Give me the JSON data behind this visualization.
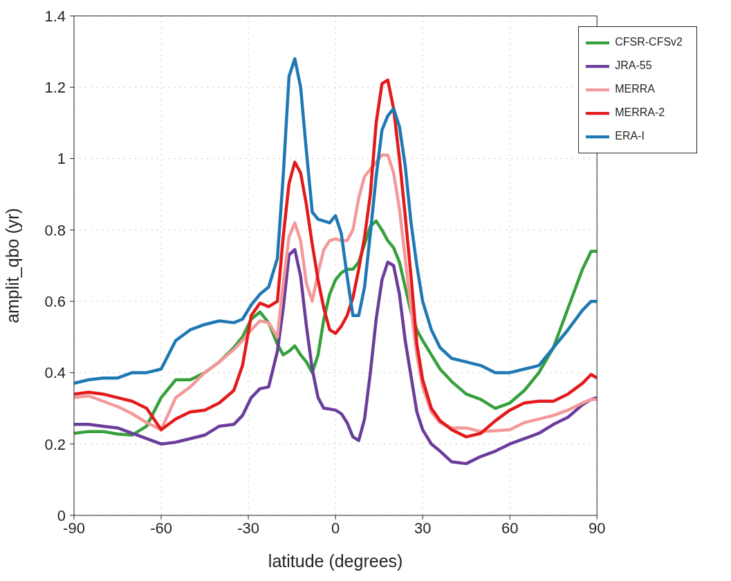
{
  "chart_data": {
    "type": "line",
    "xlabel": "latitude (degrees)",
    "ylabel": "amplit_qbo (yr)",
    "x": [
      -90,
      -85,
      -80,
      -75,
      -70,
      -65,
      -60,
      -55,
      -50,
      -45,
      -40,
      -35,
      -32,
      -29,
      -26,
      -23,
      -20,
      -18,
      -16,
      -14,
      -12,
      -10,
      -8,
      -6,
      -4,
      -2,
      0,
      2,
      4,
      6,
      8,
      10,
      12,
      14,
      16,
      18,
      20,
      22,
      24,
      26,
      28,
      30,
      33,
      36,
      40,
      45,
      50,
      55,
      60,
      65,
      70,
      75,
      80,
      85,
      88,
      90
    ],
    "series": [
      {
        "name": "CFSR-CFSv2",
        "color": "#35a03c",
        "values": [
          0.23,
          0.235,
          0.235,
          0.228,
          0.225,
          0.25,
          0.33,
          0.38,
          0.38,
          0.4,
          0.43,
          0.47,
          0.5,
          0.55,
          0.57,
          0.54,
          0.48,
          0.45,
          0.46,
          0.475,
          0.45,
          0.43,
          0.4,
          0.45,
          0.55,
          0.62,
          0.66,
          0.68,
          0.69,
          0.69,
          0.71,
          0.76,
          0.81,
          0.825,
          0.8,
          0.77,
          0.75,
          0.71,
          0.64,
          0.57,
          0.52,
          0.49,
          0.45,
          0.41,
          0.375,
          0.34,
          0.325,
          0.3,
          0.315,
          0.35,
          0.4,
          0.47,
          0.58,
          0.69,
          0.74,
          0.74
        ]
      },
      {
        "name": "JRA-55",
        "color": "#6a3d9a",
        "values": [
          0.255,
          0.255,
          0.25,
          0.245,
          0.23,
          0.215,
          0.2,
          0.205,
          0.215,
          0.225,
          0.25,
          0.255,
          0.28,
          0.33,
          0.355,
          0.36,
          0.46,
          0.58,
          0.73,
          0.745,
          0.67,
          0.53,
          0.41,
          0.33,
          0.3,
          0.298,
          0.295,
          0.285,
          0.26,
          0.22,
          0.21,
          0.27,
          0.4,
          0.55,
          0.66,
          0.71,
          0.7,
          0.62,
          0.49,
          0.39,
          0.29,
          0.24,
          0.2,
          0.18,
          0.15,
          0.145,
          0.165,
          0.18,
          0.2,
          0.215,
          0.23,
          0.255,
          0.275,
          0.31,
          0.325,
          0.33
        ]
      },
      {
        "name": "MERRA",
        "color": "#f4999a",
        "values": [
          0.33,
          0.335,
          0.32,
          0.305,
          0.285,
          0.26,
          0.24,
          0.33,
          0.36,
          0.4,
          0.43,
          0.465,
          0.49,
          0.52,
          0.545,
          0.54,
          0.5,
          0.65,
          0.78,
          0.82,
          0.77,
          0.65,
          0.6,
          0.68,
          0.745,
          0.77,
          0.775,
          0.77,
          0.77,
          0.8,
          0.89,
          0.95,
          0.97,
          0.99,
          1.01,
          1.01,
          0.96,
          0.86,
          0.72,
          0.58,
          0.45,
          0.36,
          0.29,
          0.26,
          0.245,
          0.245,
          0.235,
          0.237,
          0.24,
          0.26,
          0.27,
          0.28,
          0.295,
          0.315,
          0.325,
          0.325
        ]
      },
      {
        "name": "MERRA-2",
        "color": "#e31a1c",
        "values": [
          0.34,
          0.345,
          0.34,
          0.33,
          0.32,
          0.3,
          0.24,
          0.27,
          0.29,
          0.295,
          0.315,
          0.35,
          0.42,
          0.56,
          0.595,
          0.585,
          0.6,
          0.78,
          0.93,
          0.99,
          0.96,
          0.87,
          0.76,
          0.66,
          0.58,
          0.52,
          0.51,
          0.53,
          0.56,
          0.61,
          0.69,
          0.78,
          0.9,
          1.1,
          1.21,
          1.22,
          1.14,
          1.0,
          0.84,
          0.67,
          0.48,
          0.38,
          0.3,
          0.265,
          0.24,
          0.22,
          0.23,
          0.265,
          0.295,
          0.315,
          0.32,
          0.32,
          0.34,
          0.37,
          0.395,
          0.385
        ]
      },
      {
        "name": "ERA-I",
        "color": "#1f78b4",
        "values": [
          0.37,
          0.38,
          0.385,
          0.385,
          0.4,
          0.4,
          0.41,
          0.49,
          0.52,
          0.535,
          0.545,
          0.54,
          0.55,
          0.59,
          0.62,
          0.64,
          0.72,
          0.95,
          1.23,
          1.28,
          1.2,
          1.02,
          0.85,
          0.83,
          0.825,
          0.82,
          0.84,
          0.79,
          0.67,
          0.56,
          0.56,
          0.64,
          0.79,
          0.95,
          1.08,
          1.12,
          1.14,
          1.09,
          0.98,
          0.82,
          0.7,
          0.6,
          0.52,
          0.47,
          0.44,
          0.43,
          0.42,
          0.4,
          0.4,
          0.41,
          0.42,
          0.47,
          0.52,
          0.575,
          0.6,
          0.6
        ]
      }
    ],
    "xlim": [
      -90,
      90
    ],
    "xticks": [
      -90,
      -60,
      -30,
      0,
      30,
      60,
      90
    ],
    "ylim": [
      0,
      1.4
    ],
    "yticks": [
      0,
      0.2,
      0.4,
      0.6,
      0.8,
      1,
      1.2,
      1.4
    ],
    "grid": true,
    "legend": "top right",
    "marker": "none",
    "line_style": "solid"
  }
}
